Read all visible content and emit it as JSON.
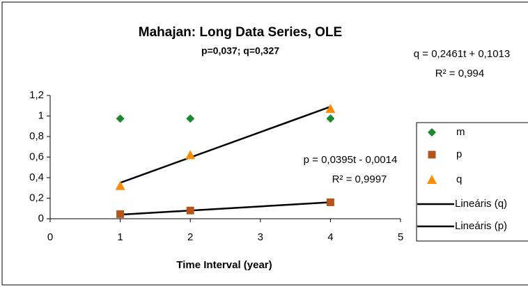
{
  "chart_data": {
    "type": "scatter",
    "title": "Mahajan: Long Data Series, OLE",
    "subtitle": "p=0,037; q=0,327",
    "xlabel": "Time Interval (year)",
    "xlim": [
      0,
      5
    ],
    "xticks": [
      0,
      1,
      2,
      3,
      4,
      5
    ],
    "ylim": [
      0,
      1.2
    ],
    "yticks": [
      0,
      {
        "value": 0.2,
        "label": "0,2"
      },
      {
        "value": 0.4,
        "label": "0,4"
      },
      {
        "value": 0.6,
        "label": "0,6"
      },
      {
        "value": 0.8,
        "label": "0,8"
      },
      1,
      {
        "value": 1.2,
        "label": "1,2"
      }
    ],
    "series": [
      {
        "name": "m",
        "color": "#1a8a2e",
        "marker": "diamond",
        "x": [
          1,
          2,
          4
        ],
        "values": [
          0.975,
          0.975,
          0.975
        ]
      },
      {
        "name": "p",
        "color": "#b5541c",
        "marker": "square",
        "x": [
          1,
          2,
          4
        ],
        "values": [
          0.045,
          0.08,
          0.16
        ]
      },
      {
        "name": "q",
        "color": "#ff8c00",
        "marker": "triangle",
        "x": [
          1,
          2,
          4
        ],
        "values": [
          0.32,
          0.62,
          1.07
        ]
      },
      {
        "name": "Lineáris (q)",
        "color": "#000000",
        "marker": "line",
        "x": [
          1,
          4
        ],
        "values": [
          0.35,
          1.09
        ]
      },
      {
        "name": "Lineáris (p)",
        "color": "#000000",
        "marker": "line",
        "x": [
          1,
          4
        ],
        "values": [
          0.04,
          0.16
        ]
      }
    ],
    "annotations": [
      "q = 0,2461t + 0,1013",
      "R² = 0,994",
      "p = 0,0395t - 0,0014",
      "R² = 0,9997"
    ]
  }
}
